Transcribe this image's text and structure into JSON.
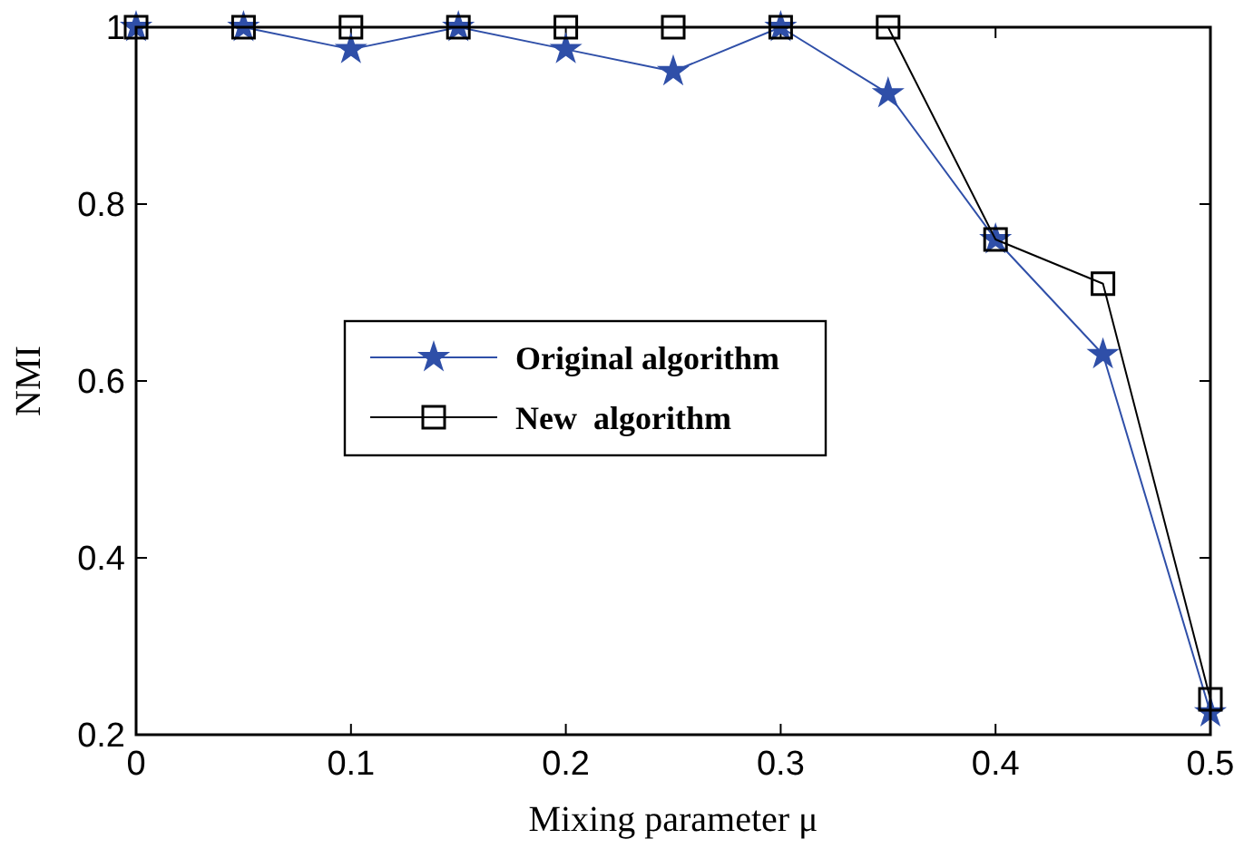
{
  "chart_data": {
    "type": "line",
    "xlabel": "Mixing parameter μ",
    "ylabel": "NMI",
    "x": [
      0,
      0.05,
      0.1,
      0.15,
      0.2,
      0.25,
      0.3,
      0.35,
      0.4,
      0.45,
      0.5
    ],
    "xlim": [
      0,
      0.5
    ],
    "xticks": [
      0,
      0.1,
      0.2,
      0.3,
      0.4,
      0.5
    ],
    "ylim": [
      0.2,
      1
    ],
    "yticks": [
      0.2,
      0.4,
      0.6,
      0.8,
      1
    ],
    "grid": false,
    "legend": "left",
    "line_style": "solid",
    "series": [
      {
        "name": "Original algorithm",
        "color": "#2f4fa8",
        "marker": "star",
        "values": [
          1,
          1,
          0.975,
          1,
          0.975,
          0.95,
          1,
          0.925,
          0.76,
          0.63,
          0.225
        ]
      },
      {
        "name": "New  algorithm",
        "color": "#000000",
        "marker": "square",
        "values": [
          1,
          1,
          1,
          1,
          1,
          1,
          1,
          1,
          0.76,
          0.71,
          0.24
        ]
      }
    ]
  }
}
